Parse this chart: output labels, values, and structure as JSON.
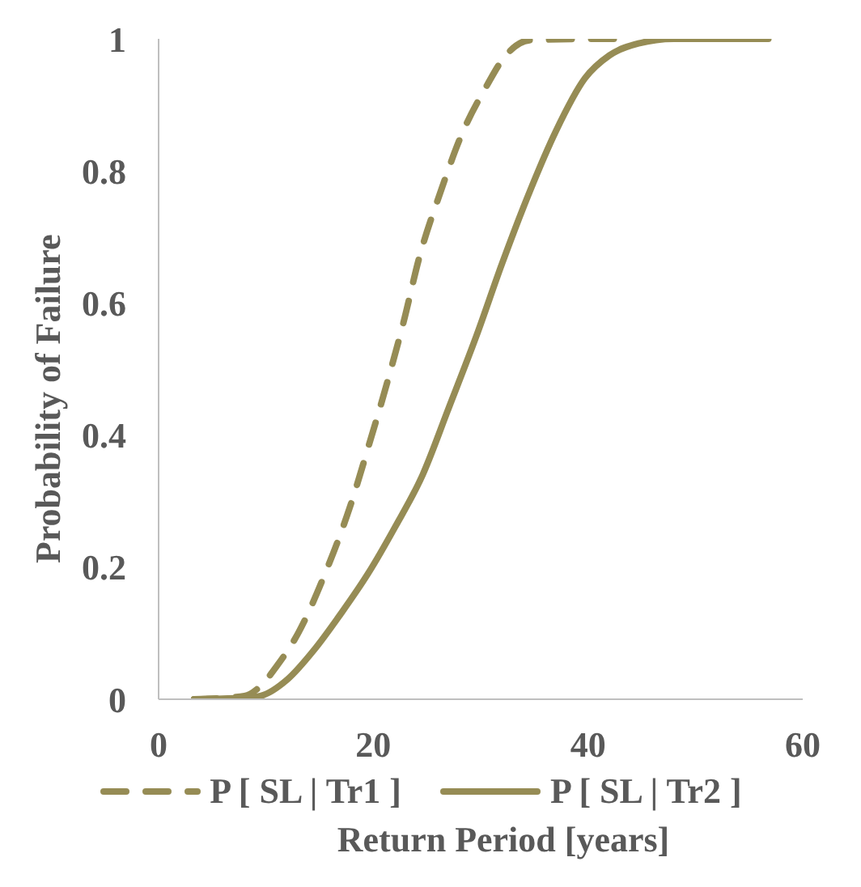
{
  "chart_data": {
    "type": "line",
    "xlabel": "Return Period [years]",
    "ylabel": "Probability of Failure",
    "xlim": [
      0,
      60
    ],
    "xticks": [
      0,
      20,
      40,
      60
    ],
    "ylim": [
      0,
      1
    ],
    "yticks": [
      0,
      0.2,
      0.4,
      0.6,
      0.8,
      1
    ],
    "grid": false,
    "legend": "bottom",
    "marker": "none",
    "series": [
      {
        "name": "P [ SL | Tr1 ]",
        "color": "#968c55",
        "line_style": "dashed",
        "x": [
          3.3,
          8,
          9.5,
          11,
          13,
          15.5,
          17.8,
          19.5,
          21.3,
          22.8,
          24.3,
          26.3,
          28.1,
          30.6,
          32.1,
          34.6,
          40.7,
          43.3
        ],
        "values": [
          0,
          0.005,
          0.02,
          0.05,
          0.1,
          0.19,
          0.29,
          0.38,
          0.48,
          0.57,
          0.67,
          0.77,
          0.85,
          0.93,
          0.97,
          0.998,
          1,
          1
        ]
      },
      {
        "name": "P [ SL | Tr2 ]",
        "color": "#968c55",
        "line_style": "solid",
        "x": [
          3.3,
          8,
          9.5,
          12,
          14.5,
          17,
          19.5,
          22,
          24.6,
          27,
          29.6,
          32,
          34.6,
          37,
          39.7,
          42,
          44.7,
          48,
          56.8
        ],
        "values": [
          0,
          0.002,
          0.005,
          0.03,
          0.075,
          0.13,
          0.19,
          0.26,
          0.34,
          0.44,
          0.55,
          0.66,
          0.77,
          0.86,
          0.94,
          0.975,
          0.993,
          1,
          1
        ]
      }
    ]
  }
}
